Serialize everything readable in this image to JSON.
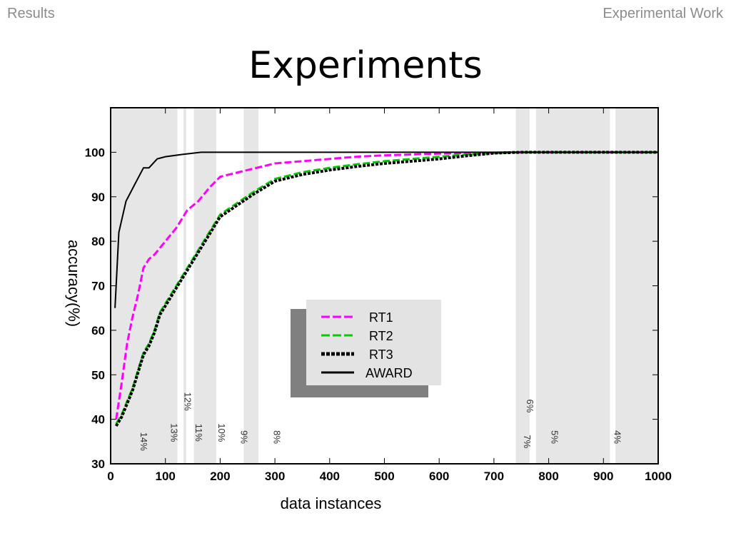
{
  "header": {
    "left": "Results",
    "right": "Experimental Work"
  },
  "slide": {
    "title": "Experiments"
  },
  "chart_data": {
    "type": "line",
    "title": "",
    "xlabel": "data instances",
    "ylabel": "accuracy(%)",
    "xlim": [
      0,
      1000
    ],
    "ylim": [
      30,
      110
    ],
    "xticks": [
      0,
      100,
      200,
      300,
      400,
      500,
      600,
      700,
      800,
      900,
      1000
    ],
    "yticks": [
      30,
      40,
      50,
      60,
      70,
      80,
      90,
      100
    ],
    "legend_position": "center",
    "background_bands": [
      [
        0,
        122
      ],
      [
        133,
        138
      ],
      [
        152,
        193
      ],
      [
        243,
        270
      ],
      [
        740,
        765
      ],
      [
        777,
        912
      ],
      [
        922,
        1000
      ]
    ],
    "annotations": [
      {
        "text": "14%",
        "x": 55,
        "y": 35
      },
      {
        "text": "13%",
        "x": 110,
        "y": 37
      },
      {
        "text": "12%",
        "x": 135,
        "y": 44
      },
      {
        "text": "11%",
        "x": 155,
        "y": 37
      },
      {
        "text": "10%",
        "x": 197,
        "y": 37
      },
      {
        "text": "9%",
        "x": 238,
        "y": 36
      },
      {
        "text": "8%",
        "x": 298,
        "y": 36
      },
      {
        "text": "6%",
        "x": 760,
        "y": 43
      },
      {
        "text": "7%",
        "x": 755,
        "y": 35
      },
      {
        "text": "5%",
        "x": 805,
        "y": 36
      },
      {
        "text": "4%",
        "x": 920,
        "y": 36
      }
    ],
    "series": [
      {
        "name": "RT1",
        "color": "#ff00ff",
        "style": "dashed",
        "x": [
          10,
          20,
          30,
          40,
          50,
          60,
          70,
          80,
          100,
          120,
          140,
          160,
          180,
          200,
          250,
          300,
          350,
          400,
          450,
          500,
          550,
          600,
          650,
          700,
          750,
          800,
          1000
        ],
        "y": [
          40,
          48,
          57,
          63,
          68,
          74,
          76,
          77,
          80,
          83,
          87,
          89,
          92,
          94.5,
          96,
          97.5,
          98,
          98.5,
          99,
          99.3,
          99.5,
          99.7,
          99.8,
          99.9,
          100,
          100,
          100
        ]
      },
      {
        "name": "RT2",
        "color": "#00cc00",
        "style": "dashed",
        "x": [
          10,
          20,
          30,
          40,
          50,
          60,
          70,
          80,
          90,
          100,
          120,
          140,
          160,
          180,
          200,
          230,
          260,
          300,
          350,
          400,
          450,
          500,
          550,
          600,
          650,
          700,
          750,
          800,
          1000
        ],
        "y": [
          39,
          41,
          44,
          47,
          51,
          55,
          57,
          60,
          64,
          66,
          70,
          74,
          78,
          82,
          86,
          88.5,
          91,
          94,
          95.5,
          96.5,
          97.3,
          98,
          98.5,
          99,
          99.5,
          99.8,
          100,
          100,
          100
        ]
      },
      {
        "name": "RT3",
        "color": "#000000",
        "style": "dotted",
        "x": [
          10,
          20,
          30,
          40,
          50,
          60,
          70,
          80,
          90,
          100,
          120,
          140,
          160,
          180,
          200,
          230,
          260,
          300,
          350,
          400,
          450,
          500,
          550,
          600,
          650,
          700,
          750,
          800,
          1000
        ],
        "y": [
          38.5,
          40.5,
          43.5,
          46.5,
          50.5,
          54.5,
          56.5,
          59.5,
          63.5,
          65.5,
          69.5,
          73.5,
          77.5,
          81.5,
          85.5,
          88,
          90.5,
          93.5,
          95,
          96,
          96.8,
          97.5,
          98,
          98.5,
          99.2,
          99.8,
          100,
          100,
          100
        ]
      },
      {
        "name": "AWARD",
        "color": "#000000",
        "style": "solid",
        "x": [
          8,
          15,
          28,
          45,
          60,
          70,
          85,
          100,
          130,
          165,
          200,
          300,
          400,
          500,
          600,
          700,
          800,
          1000
        ],
        "y": [
          65,
          82,
          89,
          93,
          96.5,
          96.5,
          98.5,
          99,
          99.5,
          100,
          100,
          100,
          100,
          100,
          100,
          100,
          100,
          100
        ]
      }
    ]
  }
}
